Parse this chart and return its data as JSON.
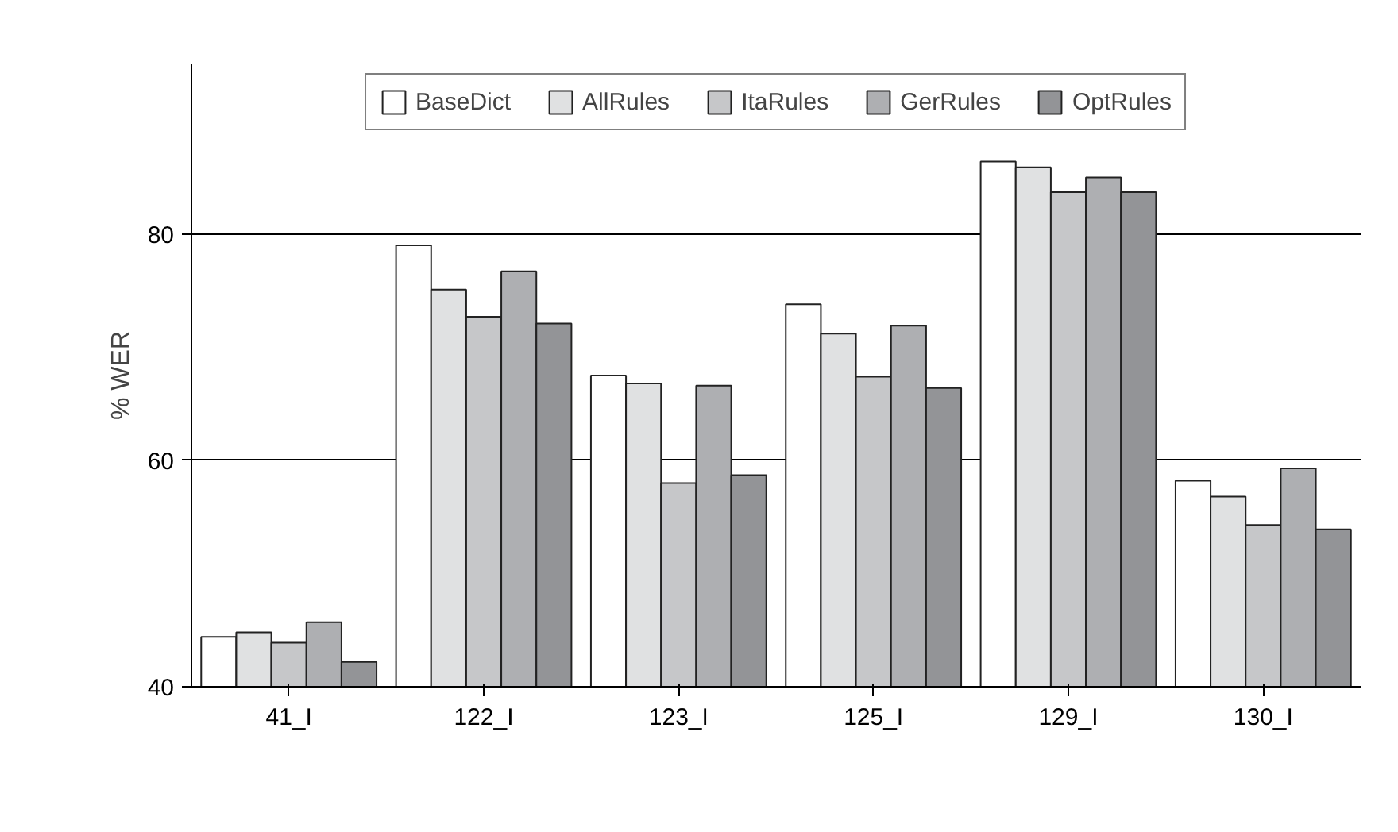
{
  "chart_data": {
    "type": "bar",
    "ylabel": "% WER",
    "categories": [
      "41_I",
      "122_I",
      "123_I",
      "125_I",
      "129_I",
      "130_I"
    ],
    "series": [
      {
        "name": "BaseDict",
        "color": "#ffffff",
        "values": [
          44.4,
          79.0,
          67.5,
          73.8,
          86.4,
          58.2
        ]
      },
      {
        "name": "AllRules",
        "color": "#e0e1e2",
        "values": [
          44.8,
          75.1,
          66.8,
          71.2,
          85.9,
          56.8
        ]
      },
      {
        "name": "ItaRules",
        "color": "#c6c7c9",
        "values": [
          43.9,
          72.7,
          58.0,
          67.4,
          83.7,
          54.3
        ]
      },
      {
        "name": "GerRules",
        "color": "#aeafb2",
        "values": [
          45.7,
          76.7,
          66.6,
          71.9,
          85.0,
          59.3
        ]
      },
      {
        "name": "OptRules",
        "color": "#939497",
        "values": [
          42.2,
          72.1,
          58.7,
          66.4,
          83.7,
          53.9
        ]
      }
    ],
    "ylim": [
      40,
      95
    ],
    "yticks": [
      40,
      60,
      80
    ],
    "grid": "y",
    "legend": "top"
  }
}
